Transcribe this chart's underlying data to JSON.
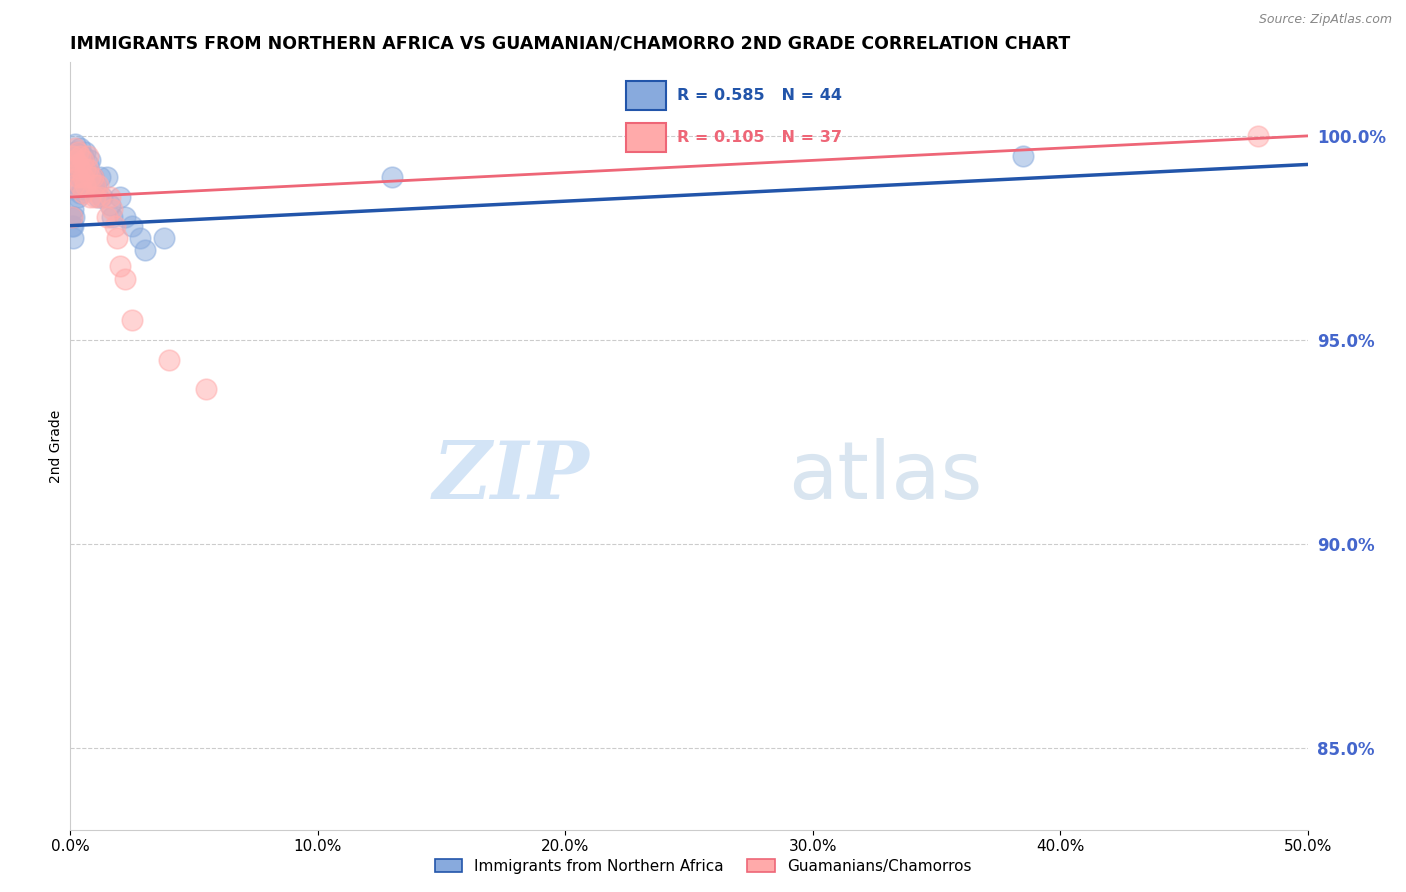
{
  "title": "IMMIGRANTS FROM NORTHERN AFRICA VS GUAMANIAN/CHAMORRO 2ND GRADE CORRELATION CHART",
  "source": "Source: ZipAtlas.com",
  "ylabel": "2nd Grade",
  "legend_label_blue": "Immigrants from Northern Africa",
  "legend_label_pink": "Guamanians/Chamorros",
  "R_blue": 0.585,
  "N_blue": 44,
  "R_pink": 0.105,
  "N_pink": 37,
  "color_blue": "#88AADD",
  "color_pink": "#FFAAAA",
  "color_blue_line": "#2255AA",
  "color_pink_line": "#EE6677",
  "color_right_axis": "#4466CC",
  "xmin": 0.0,
  "xmax": 0.5,
  "ymin": 83.0,
  "ymax": 101.8,
  "yticks": [
    85.0,
    90.0,
    95.0,
    100.0
  ],
  "blue_scatter_x": [
    0.0005,
    0.0008,
    0.001,
    0.001,
    0.001,
    0.0015,
    0.002,
    0.002,
    0.002,
    0.002,
    0.003,
    0.003,
    0.003,
    0.003,
    0.004,
    0.004,
    0.004,
    0.004,
    0.005,
    0.005,
    0.005,
    0.006,
    0.006,
    0.006,
    0.007,
    0.007,
    0.008,
    0.008,
    0.009,
    0.01,
    0.011,
    0.012,
    0.013,
    0.015,
    0.016,
    0.017,
    0.02,
    0.022,
    0.025,
    0.028,
    0.03,
    0.038,
    0.13,
    0.385
  ],
  "blue_scatter_y": [
    97.8,
    98.0,
    97.5,
    97.8,
    98.2,
    98.0,
    99.8,
    99.6,
    99.5,
    99.3,
    99.5,
    99.2,
    98.8,
    98.5,
    99.7,
    99.4,
    99.0,
    98.6,
    99.5,
    99.0,
    98.7,
    99.6,
    99.2,
    98.8,
    99.3,
    98.9,
    99.4,
    98.8,
    99.0,
    98.8,
    98.5,
    99.0,
    98.5,
    99.0,
    98.3,
    98.0,
    98.5,
    98.0,
    97.8,
    97.5,
    97.2,
    97.5,
    99.0,
    99.5
  ],
  "pink_scatter_x": [
    0.0005,
    0.001,
    0.001,
    0.0015,
    0.002,
    0.002,
    0.003,
    0.003,
    0.003,
    0.004,
    0.004,
    0.004,
    0.005,
    0.005,
    0.005,
    0.006,
    0.006,
    0.007,
    0.007,
    0.008,
    0.008,
    0.009,
    0.01,
    0.01,
    0.011,
    0.012,
    0.015,
    0.016,
    0.017,
    0.018,
    0.019,
    0.02,
    0.022,
    0.025,
    0.04,
    0.055,
    0.48
  ],
  "pink_scatter_y": [
    98.0,
    99.5,
    99.2,
    98.8,
    99.7,
    99.4,
    99.6,
    99.3,
    99.0,
    99.5,
    99.2,
    98.8,
    99.4,
    99.0,
    98.6,
    99.2,
    98.8,
    99.5,
    99.2,
    99.0,
    98.5,
    99.0,
    98.8,
    98.5,
    98.8,
    98.5,
    98.0,
    98.5,
    98.2,
    97.8,
    97.5,
    96.8,
    96.5,
    95.5,
    94.5,
    93.8,
    100.0
  ],
  "watermark_zip": "ZIP",
  "watermark_atlas": "atlas",
  "background_color": "#ffffff",
  "grid_color": "#cccccc"
}
